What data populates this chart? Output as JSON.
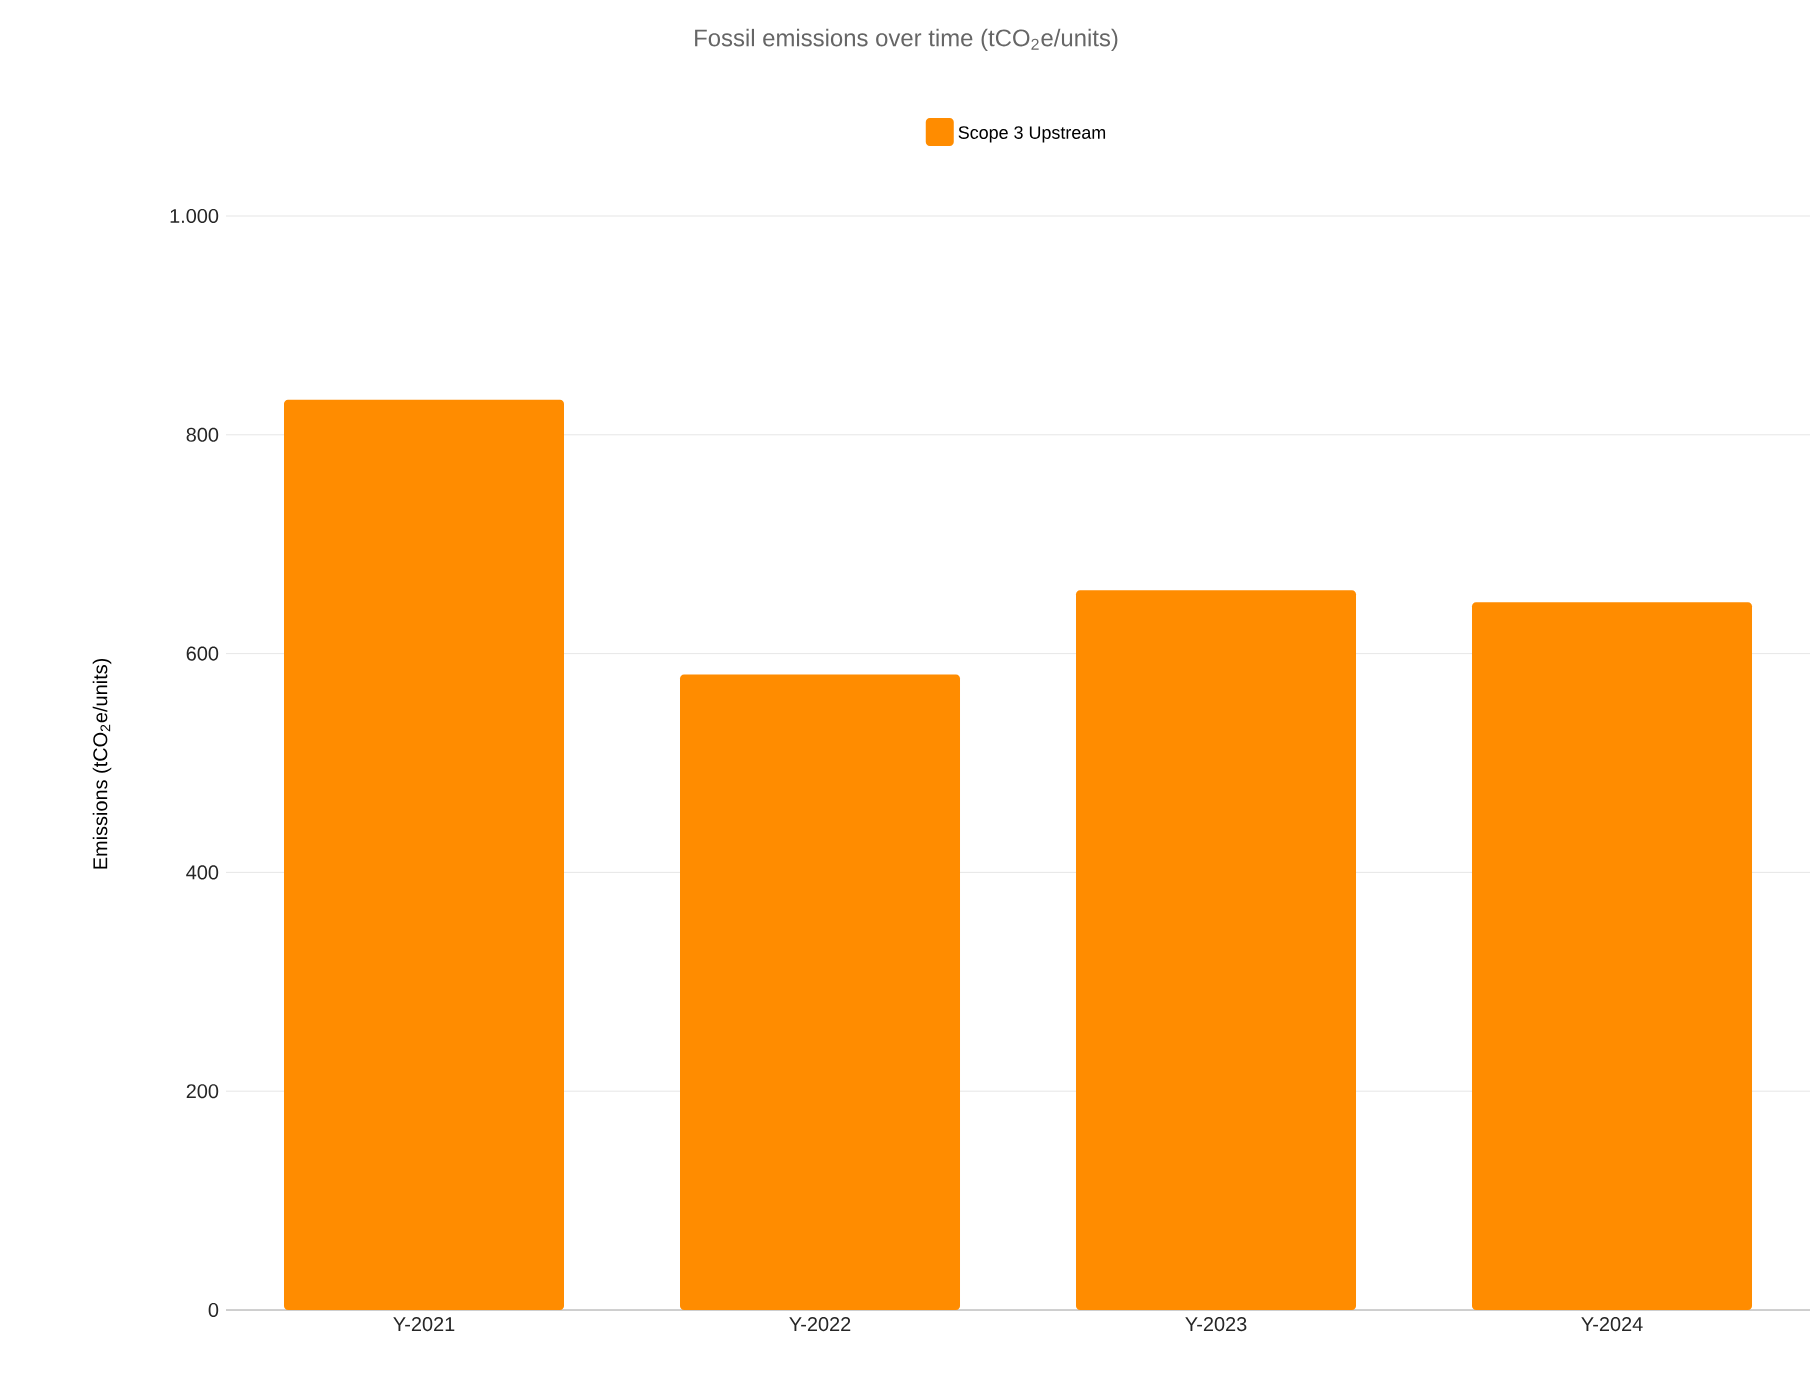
{
  "chart_data": {
    "type": "bar",
    "title": "Fossil emissions over time (tCO$_{2}$e/units)",
    "ylabel": "Emissions (tCO$_{2}$e/units)",
    "categories": [
      "Y-2021",
      "Y-2022",
      "Y-2023",
      "Y-2024"
    ],
    "series": [
      {
        "name": "Scope 3 Upstream",
        "color": "#ff8c00",
        "values": [
          832,
          581,
          658,
          647
        ]
      }
    ],
    "ylim": [
      0,
      1000
    ],
    "yticks": [
      0,
      200,
      400,
      600,
      800,
      {
        "value": 1000,
        "label": "1.000"
      }
    ],
    "grid": "y",
    "legend": "top"
  }
}
